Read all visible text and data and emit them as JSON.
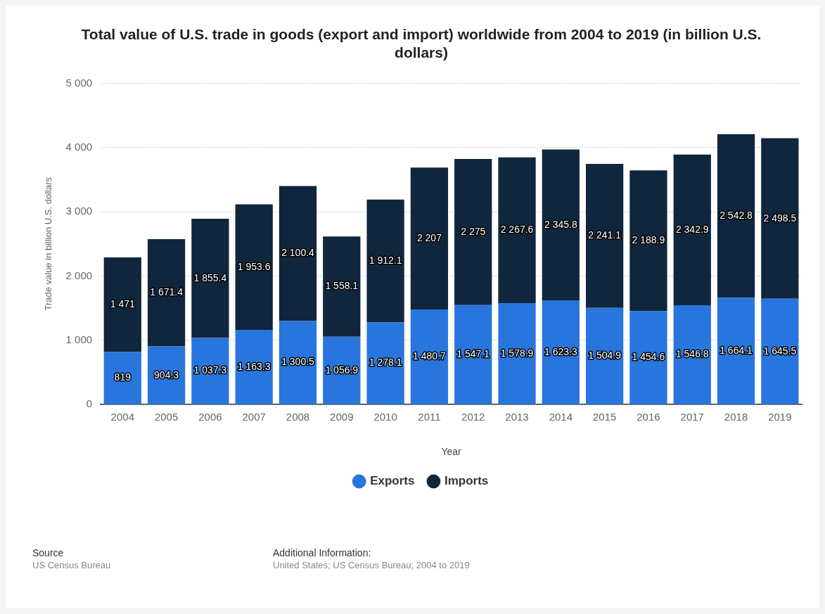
{
  "chart_data": {
    "type": "bar",
    "stacked": true,
    "title": "Total value of U.S. trade in goods (export and import) worldwide from 2004 to 2019 (in billion U.S. dollars)",
    "xlabel": "Year",
    "ylabel": "Trade value in billion U.S. dollars",
    "categories": [
      "2004",
      "2005",
      "2006",
      "2007",
      "2008",
      "2009",
      "2010",
      "2011",
      "2012",
      "2013",
      "2014",
      "2015",
      "2016",
      "2017",
      "2018",
      "2019"
    ],
    "series": [
      {
        "name": "Exports",
        "color": "#2876dd",
        "values": [
          819,
          904.3,
          1037.3,
          1163.3,
          1300.5,
          1056.9,
          1278.1,
          1480.7,
          1547.1,
          1578.9,
          1623.3,
          1504.9,
          1454.6,
          1546.8,
          1664.1,
          1645.5
        ],
        "value_labels": [
          "819",
          "904.3",
          "1 037.3",
          "1 163.3",
          "1 300.5",
          "1 056.9",
          "1 278.1",
          "1 480.7",
          "1 547.1",
          "1 578.9",
          "1 623.3",
          "1 504.9",
          "1 454.6",
          "1 546.8",
          "1 664.1",
          "1 645.5"
        ]
      },
      {
        "name": "Imports",
        "color": "#10263d",
        "values": [
          1471,
          1671.4,
          1855.4,
          1953.6,
          2100.4,
          1558.1,
          1912.1,
          2207,
          2275,
          2267.6,
          2345.8,
          2241.1,
          2188.9,
          2342.9,
          2542.8,
          2498.5
        ],
        "value_labels": [
          "1 471",
          "1 671.4",
          "1 855.4",
          "1 953.6",
          "2 100.4",
          "1 558.1",
          "1 912.1",
          "2 207",
          "2 275",
          "2 267.6",
          "2 345.8",
          "2 241.1",
          "2 188.9",
          "2 342.9",
          "2 542.8",
          "2 498.5"
        ]
      }
    ],
    "ylim": [
      0,
      5000
    ],
    "yticks": [
      {
        "value": 0,
        "label": "0"
      },
      {
        "value": 1000,
        "label": "1 000"
      },
      {
        "value": 2000,
        "label": "2 000"
      },
      {
        "value": 3000,
        "label": "3 000"
      },
      {
        "value": 4000,
        "label": "4 000"
      },
      {
        "value": 5000,
        "label": "5 000"
      }
    ],
    "grid": "y",
    "legend": "bottom",
    "annotations": [
      "Source",
      "US Census Bureau",
      "Additional Information:",
      "United States; US Census Bureau; 2004 to 2019"
    ]
  }
}
